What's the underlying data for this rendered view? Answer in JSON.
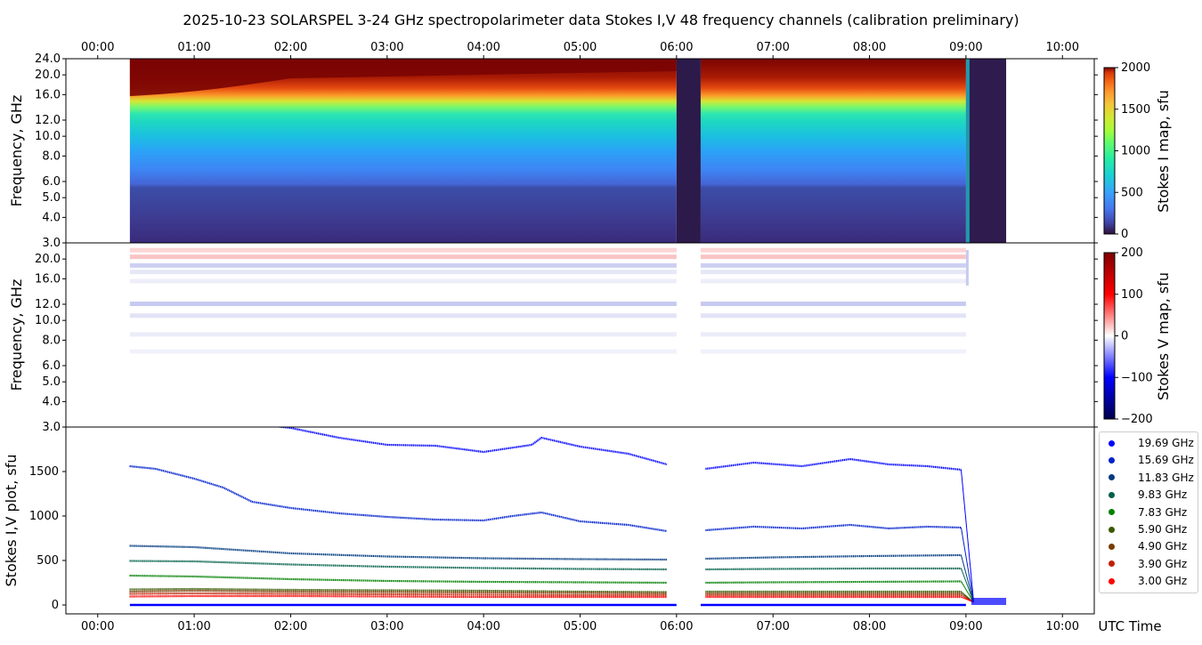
{
  "chart_data": [
    {
      "panel": "stokes-i-map",
      "type": "heatmap",
      "title": "2025-10-23  SOLARSPEL  3-24 GHz spectropolarimeter data   Stokes I,V   48 frequency channels   (calibration preliminary)",
      "ylabel": "Frequency, GHz",
      "colorbar_label": "Stokes I map, sfu",
      "colorbar_ticks": [
        "0",
        "500",
        "1000",
        "1500",
        "2000"
      ],
      "colorbar_range": [
        0,
        2000
      ],
      "colormap": "turbo",
      "yscale": "log",
      "ylim": [
        3.0,
        24.0
      ],
      "yticks": [
        "3.0",
        "4.0",
        "5.0",
        "6.0",
        "8.0",
        "10.0",
        "12.0",
        "16.0",
        "20.0",
        "24.0"
      ],
      "top_xticks": [
        "00:00",
        "01:00",
        "02:00",
        "03:00",
        "04:00",
        "05:00",
        "06:00",
        "07:00",
        "08:00",
        "09:00",
        "10:00"
      ],
      "data_start": "00:20",
      "data_end": "09:25",
      "gap": [
        "06:00",
        "06:15"
      ],
      "calibration_drop": "09:00"
    },
    {
      "panel": "stokes-v-map",
      "type": "heatmap",
      "ylabel": "Frequency, GHz",
      "colorbar_label": "Stokes V map, sfu",
      "colorbar_ticks": [
        "200",
        "100",
        "0",
        "−100",
        "−200"
      ],
      "colorbar_range": [
        -200,
        200
      ],
      "colormap": "seismic",
      "yscale": "log",
      "ylim": [
        3.0,
        24.0
      ],
      "yticks": [
        "3.0",
        "4.0",
        "5.0",
        "6.0",
        "8.0",
        "10.0",
        "12.0",
        "16.0",
        "20.0"
      ]
    },
    {
      "panel": "stokes-iv-plot",
      "type": "scatter",
      "ylabel": "Stokes I,V plot, sfu",
      "xlabel": "UTC Time",
      "xticks": [
        "00:00",
        "01:00",
        "02:00",
        "03:00",
        "04:00",
        "05:00",
        "06:00",
        "07:00",
        "08:00",
        "09:00",
        "10:00"
      ],
      "yticks": [
        "0",
        "500",
        "1000",
        "1500"
      ],
      "ylim": [
        -100,
        2000
      ],
      "xlim": [
        -0.33,
        10.33
      ],
      "series": [
        {
          "name": "19.69 GHz",
          "color": "#0000ff",
          "x": [
            0.33,
            1.0,
            1.5,
            2.0,
            2.5,
            3.0,
            3.5,
            4.0,
            4.5,
            4.6,
            5.0,
            5.5,
            5.9,
            6.3,
            6.8,
            7.3,
            7.8,
            8.2,
            8.6,
            8.95
          ],
          "y": [
            2100,
            2080,
            2050,
            1990,
            1880,
            1800,
            1790,
            1720,
            1800,
            1880,
            1780,
            1700,
            1580,
            1530,
            1600,
            1560,
            1640,
            1580,
            1560,
            1520
          ]
        },
        {
          "name": "15.69 GHz",
          "color": "#0022cc",
          "x": [
            0.33,
            0.6,
            1.0,
            1.3,
            1.6,
            2.0,
            2.5,
            3.0,
            3.5,
            4.0,
            4.3,
            4.6,
            5.0,
            5.5,
            5.9,
            6.3,
            6.8,
            7.3,
            7.8,
            8.2,
            8.6,
            8.95
          ],
          "y": [
            1560,
            1530,
            1420,
            1320,
            1160,
            1090,
            1030,
            990,
            960,
            950,
            1000,
            1040,
            940,
            900,
            830,
            840,
            880,
            860,
            900,
            860,
            880,
            870
          ]
        },
        {
          "name": "11.83 GHz",
          "color": "#003a80",
          "x": [
            0.33,
            1.0,
            2.0,
            3.0,
            4.0,
            5.0,
            5.9,
            6.3,
            7.0,
            8.0,
            8.95
          ],
          "y": [
            665,
            650,
            580,
            545,
            525,
            515,
            510,
            520,
            535,
            550,
            560
          ]
        },
        {
          "name": "9.83 GHz",
          "color": "#00604a",
          "x": [
            0.33,
            1.0,
            2.0,
            3.0,
            4.0,
            5.0,
            5.9,
            6.3,
            7.0,
            8.0,
            8.95
          ],
          "y": [
            495,
            490,
            455,
            430,
            415,
            405,
            400,
            400,
            405,
            410,
            410
          ]
        },
        {
          "name": "7.83 GHz",
          "color": "#008000",
          "x": [
            0.33,
            1.0,
            2.0,
            3.0,
            4.0,
            5.0,
            5.9,
            6.3,
            7.0,
            8.0,
            8.95
          ],
          "y": [
            330,
            320,
            290,
            270,
            260,
            255,
            250,
            250,
            255,
            260,
            265
          ]
        },
        {
          "name": "5.90 GHz",
          "color": "#3a5a00",
          "x": [
            0.33,
            1.0,
            2.0,
            3.0,
            4.0,
            5.0,
            5.9,
            6.3,
            7.0,
            8.0,
            8.95
          ],
          "y": [
            175,
            180,
            170,
            165,
            160,
            150,
            145,
            150,
            150,
            150,
            150
          ]
        },
        {
          "name": "4.90 GHz",
          "color": "#7a3a00",
          "x": [
            0.33,
            1.0,
            2.0,
            3.0,
            4.0,
            5.0,
            5.9,
            6.3,
            7.0,
            8.0,
            8.95
          ],
          "y": [
            150,
            160,
            150,
            145,
            140,
            135,
            130,
            130,
            130,
            130,
            130
          ]
        },
        {
          "name": "3.90 GHz",
          "color": "#c02000",
          "x": [
            0.33,
            1.0,
            2.0,
            3.0,
            4.0,
            5.0,
            5.9,
            6.3,
            7.0,
            8.0,
            8.95
          ],
          "y": [
            125,
            130,
            125,
            120,
            115,
            110,
            110,
            110,
            110,
            110,
            110
          ]
        },
        {
          "name": "3.00 GHz",
          "color": "#ff0000",
          "x": [
            0.33,
            1.0,
            2.0,
            3.0,
            4.0,
            5.0,
            5.9,
            6.3,
            7.0,
            8.0,
            8.95
          ],
          "y": [
            95,
            100,
            100,
            95,
            90,
            90,
            90,
            90,
            90,
            90,
            90
          ]
        }
      ],
      "v_series_color": "#0000ff",
      "v_series_y": [
        0
      ],
      "post_calibration_level": 30
    }
  ]
}
